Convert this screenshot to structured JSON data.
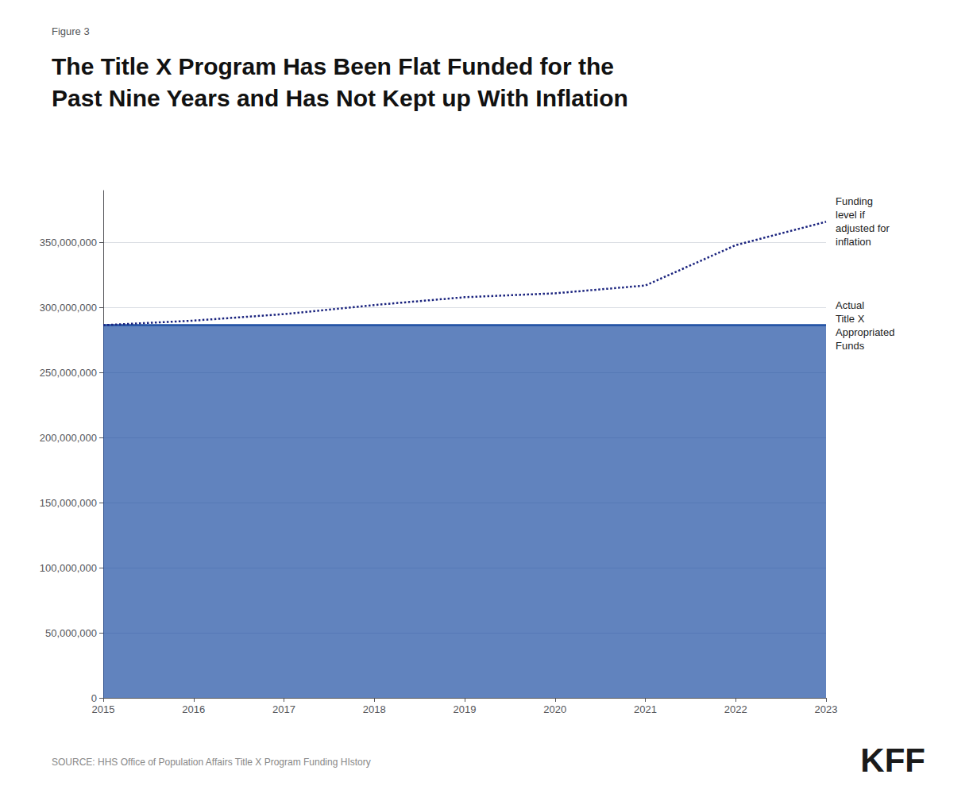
{
  "chart_data": {
    "type": "line",
    "title": "The Title X Program Has Been Flat Funded for the\nPast Nine Years and Has Not Kept up With Inflation",
    "annotations": [
      "Figure 3",
      "SOURCE: HHS Office of Population Affairs Title X Program Funding HIstory",
      "KFF"
    ],
    "x": [
      2015,
      2016,
      2017,
      2018,
      2019,
      2020,
      2021,
      2022,
      2023
    ],
    "series": [
      {
        "name": "Actual\nTitle X\nAppropriated\nFunds",
        "type": "area",
        "color": "#1e4fa3",
        "line_style": "solid",
        "values": [
          286500000,
          286500000,
          286500000,
          286500000,
          286500000,
          286500000,
          286500000,
          286500000,
          286500000
        ]
      },
      {
        "name": "Funding\nlevel if\nadjusted for\ninflation",
        "type": "line",
        "color": "#1a237e",
        "line_style": "dotted",
        "values": [
          286500000,
          290000000,
          295000000,
          302000000,
          308000000,
          311000000,
          317000000,
          348000000,
          366000000
        ]
      }
    ],
    "xlim": [
      2015,
      2023
    ],
    "xticks": [
      2015,
      2016,
      2017,
      2018,
      2019,
      2020,
      2021,
      2022,
      2023
    ],
    "ylim": [
      0,
      390000000
    ],
    "yticks": [
      0,
      {
        "value": 50000000,
        "label": "50,000,000"
      },
      {
        "value": 100000000,
        "label": "100,000,000"
      },
      {
        "value": 150000000,
        "label": "150,000,000"
      },
      {
        "value": 200000000,
        "label": "200,000,000"
      },
      {
        "value": 250000000,
        "label": "250,000,000"
      },
      {
        "value": 300000000,
        "label": "300,000,000"
      },
      {
        "value": 350000000,
        "label": "350,000,000"
      }
    ],
    "grid": true
  }
}
